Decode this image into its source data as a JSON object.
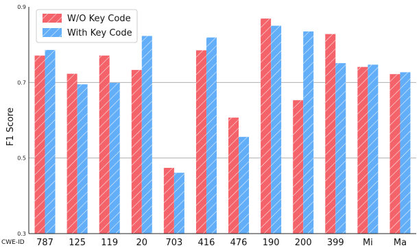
{
  "chart_data": {
    "type": "bar",
    "ylabel": "F1 Score",
    "xlabel": "CWE-ID",
    "ylim": [
      0.3,
      0.9
    ],
    "yticks": [
      "0.3",
      "0.5",
      "0.7",
      "0.9"
    ],
    "grid": true,
    "legend": "top-left",
    "categories": [
      "787",
      "125",
      "119",
      "20",
      "703",
      "416",
      "476",
      "190",
      "200",
      "399",
      "Mi",
      "Ma"
    ],
    "series": [
      {
        "name": "W/O Key Code",
        "color": "#f4636a",
        "values": [
          0.771,
          0.723,
          0.771,
          0.733,
          0.474,
          0.785,
          0.607,
          0.869,
          0.653,
          0.828,
          0.741,
          0.722
        ]
      },
      {
        "name": "With Key Code",
        "color": "#63aef9",
        "values": [
          0.786,
          0.695,
          0.699,
          0.823,
          0.461,
          0.819,
          0.556,
          0.85,
          0.835,
          0.751,
          0.747,
          0.727
        ]
      }
    ]
  }
}
